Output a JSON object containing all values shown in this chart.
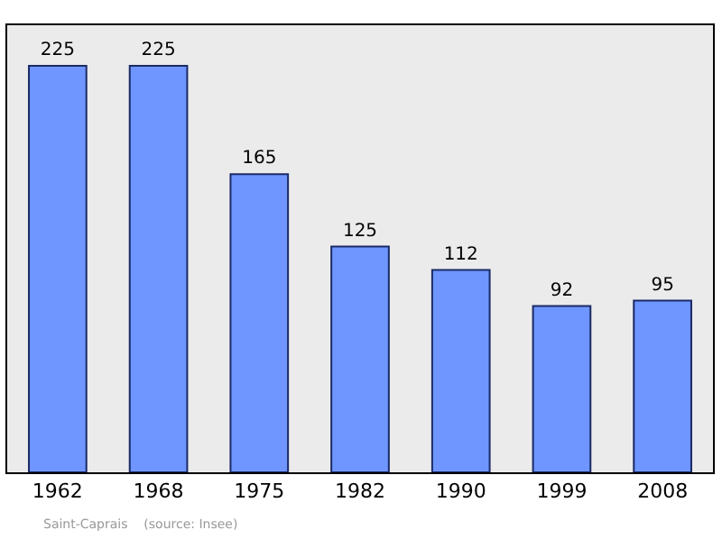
{
  "chart_data": {
    "type": "bar",
    "categories": [
      "1962",
      "1968",
      "1975",
      "1982",
      "1990",
      "1999",
      "2008"
    ],
    "values": [
      225,
      225,
      165,
      125,
      112,
      92,
      95
    ],
    "color": "#6f96ff",
    "data_labels": true,
    "annotations": [
      "Saint-Caprais    (source: Insee)"
    ]
  }
}
